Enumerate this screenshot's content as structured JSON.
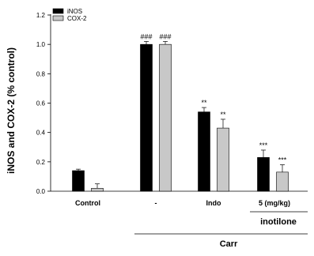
{
  "chart_data": {
    "type": "bar",
    "categories": [
      "Control",
      "-",
      "Indo",
      "5   (mg/kg)"
    ],
    "series": [
      {
        "name": "iNOS",
        "color": "#000000",
        "values": [
          0.14,
          1.0,
          0.54,
          0.23
        ],
        "errors": [
          0.01,
          0.02,
          0.03,
          0.05
        ],
        "annotations": [
          "",
          "###",
          "**",
          "***"
        ]
      },
      {
        "name": "COX-2",
        "color": "#c8c8c8",
        "values": [
          0.02,
          1.0,
          0.43,
          0.13
        ],
        "errors": [
          0.03,
          0.02,
          0.06,
          0.05
        ],
        "annotations": [
          "",
          "###",
          "**",
          "***"
        ]
      }
    ],
    "ylabel": "iNOS and COX-2 (% control)",
    "ylim": [
      0.0,
      1.2
    ],
    "yticks": [
      "0.0",
      "0.2",
      "0.4",
      "0.6",
      "0.8",
      "1.0",
      "1.2"
    ],
    "group_labels": {
      "carr": "Carr",
      "inotilone": "inotilone"
    },
    "legend_position": "top-left",
    "grid": false
  }
}
